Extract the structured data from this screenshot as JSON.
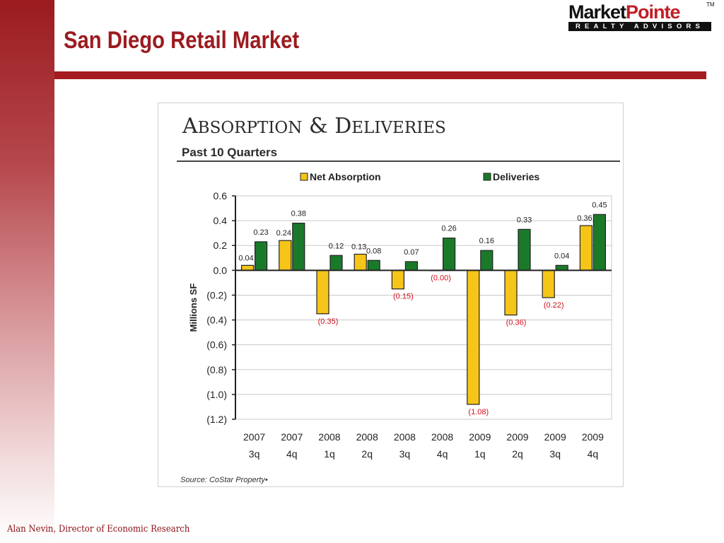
{
  "slide": {
    "title": "San Diego Retail Market",
    "footer": "Alan Nevin, Director of Economic Research"
  },
  "logo": {
    "name_part1": "Market",
    "name_part2": "Pointe",
    "trademark": "TM",
    "tagline": "REALTY ADVISORS"
  },
  "chart_data": {
    "type": "bar",
    "title": "Absorption & Deliveries",
    "subtitle": "Past 10 Quarters",
    "ylabel": "Millions SF",
    "xlabel": "",
    "ylim": [
      -1.2,
      0.6
    ],
    "yticks": [
      {
        "value": 0.6,
        "label": "0.6"
      },
      {
        "value": 0.4,
        "label": "0.4"
      },
      {
        "value": 0.2,
        "label": "0.2"
      },
      {
        "value": 0.0,
        "label": "0.0"
      },
      {
        "value": -0.2,
        "label": "(0.2)"
      },
      {
        "value": -0.4,
        "label": "(0.4)"
      },
      {
        "value": -0.6,
        "label": "(0.6)"
      },
      {
        "value": -0.8,
        "label": "(0.8)"
      },
      {
        "value": -1.0,
        "label": "(1.0)"
      },
      {
        "value": -1.2,
        "label": "(1.2)"
      }
    ],
    "grid": true,
    "legend_position": "top",
    "categories": [
      {
        "year": "2007",
        "quarter": "3q"
      },
      {
        "year": "2007",
        "quarter": "4q"
      },
      {
        "year": "2008",
        "quarter": "1q"
      },
      {
        "year": "2008",
        "quarter": "2q"
      },
      {
        "year": "2008",
        "quarter": "3q"
      },
      {
        "year": "2008",
        "quarter": "4q"
      },
      {
        "year": "2009",
        "quarter": "1q"
      },
      {
        "year": "2009",
        "quarter": "2q"
      },
      {
        "year": "2009",
        "quarter": "3q"
      },
      {
        "year": "2009",
        "quarter": "4q"
      }
    ],
    "series": [
      {
        "name": "Net Absorption",
        "color": "#f5c518",
        "values": [
          0.04,
          0.24,
          -0.35,
          0.13,
          -0.15,
          -0.0,
          -1.08,
          -0.36,
          -0.22,
          0.36
        ],
        "labels": [
          "0.04",
          "0.24",
          "(0.35)",
          "0.13",
          "(0.15)",
          "(0.00)",
          "(1.08)",
          "(0.36)",
          "(0.22)",
          "0.36"
        ]
      },
      {
        "name": "Deliveries",
        "color": "#1a7a2a",
        "values": [
          0.23,
          0.38,
          0.12,
          0.08,
          0.07,
          0.26,
          0.16,
          0.33,
          0.04,
          0.45
        ],
        "labels": [
          "0.23",
          "0.38",
          "0.12",
          "0.08",
          "0.07",
          "0.26",
          "0.16",
          "0.33",
          "0.04",
          "0.45"
        ]
      }
    ],
    "negative_label_color": "#d0101a",
    "source": "Source: CoStar Property•"
  }
}
